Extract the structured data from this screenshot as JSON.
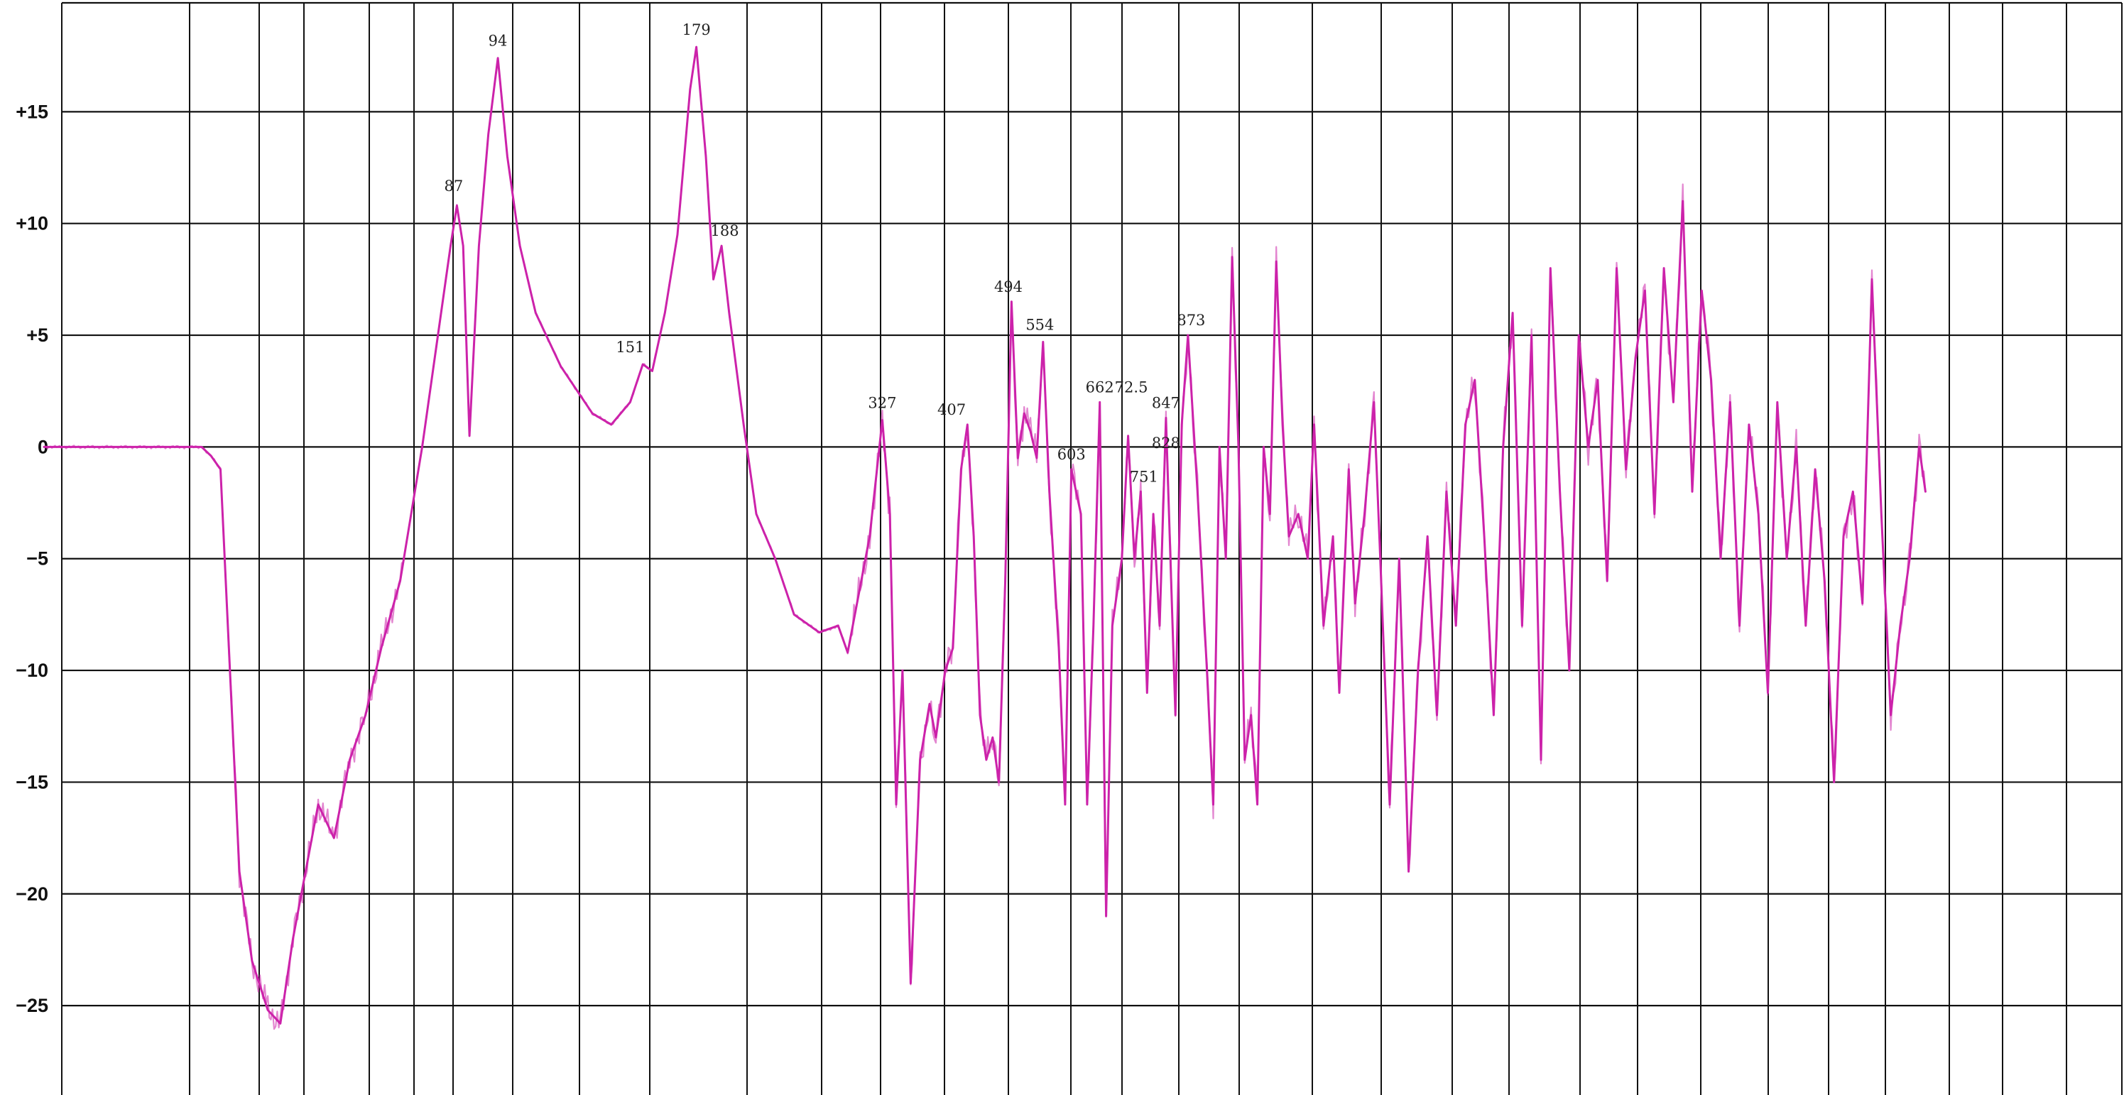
{
  "chart_data": {
    "type": "line",
    "grid": true,
    "xlim": [
      0,
      33
    ],
    "ylim": [
      -29,
      20
    ],
    "yticks": [
      15,
      10,
      5,
      0,
      -5,
      -10,
      -15,
      -20,
      -25
    ],
    "ytick_labels": [
      "+15",
      "+10",
      "+5",
      "0",
      "−5",
      "−10",
      "−15",
      "−20",
      "−25"
    ],
    "line_color": "#cc22aa",
    "trace_markers": [
      {
        "label": "87",
        "x": 6.5,
        "y": 11
      },
      {
        "label": "94",
        "x": 7.2,
        "y": 17.5
      },
      {
        "label": "151",
        "x": 9.3,
        "y": 3.8
      },
      {
        "label": "179",
        "x": 10.35,
        "y": 18
      },
      {
        "label": "188",
        "x": 10.8,
        "y": 9
      },
      {
        "label": "327",
        "x": 13.3,
        "y": 1.3
      },
      {
        "label": "407",
        "x": 14.4,
        "y": 1
      },
      {
        "label": "494",
        "x": 15.3,
        "y": 6.5
      },
      {
        "label": "554",
        "x": 15.8,
        "y": 4.8
      },
      {
        "label": "603",
        "x": 16.3,
        "y": -1
      },
      {
        "label": "662",
        "x": 16.75,
        "y": 2
      },
      {
        "label": "72.5",
        "x": 17.25,
        "y": 2
      },
      {
        "label": "751",
        "x": 17.45,
        "y": -2
      },
      {
        "label": "828",
        "x": 17.8,
        "y": -0.5
      },
      {
        "label": "847",
        "x": 17.8,
        "y": 1.3
      },
      {
        "label": "873",
        "x": 18.2,
        "y": 5
      }
    ],
    "series": [
      {
        "values": [
          [
            0.0,
            0
          ],
          [
            2.5,
            0
          ],
          [
            2.65,
            -0.4
          ],
          [
            2.8,
            -1.0
          ],
          [
            2.95,
            -10
          ],
          [
            3.1,
            -19
          ],
          [
            3.3,
            -23
          ],
          [
            3.55,
            -25.2
          ],
          [
            3.75,
            -25.8
          ],
          [
            3.95,
            -22
          ],
          [
            4.15,
            -19
          ],
          [
            4.35,
            -16
          ],
          [
            4.6,
            -17.5
          ],
          [
            4.85,
            -14
          ],
          [
            5.1,
            -12
          ],
          [
            5.35,
            -9
          ],
          [
            5.65,
            -6
          ],
          [
            6.0,
            0
          ],
          [
            6.25,
            5
          ],
          [
            6.45,
            9
          ],
          [
            6.55,
            10.8
          ],
          [
            6.65,
            9
          ],
          [
            6.75,
            0.5
          ],
          [
            6.9,
            9
          ],
          [
            7.05,
            14
          ],
          [
            7.2,
            17.4
          ],
          [
            7.35,
            13
          ],
          [
            7.55,
            9
          ],
          [
            7.8,
            6
          ],
          [
            8.2,
            3.6
          ],
          [
            8.7,
            1.5
          ],
          [
            9.0,
            1.0
          ],
          [
            9.3,
            2.0
          ],
          [
            9.5,
            3.7
          ],
          [
            9.65,
            3.4
          ],
          [
            9.85,
            6
          ],
          [
            10.05,
            9.5
          ],
          [
            10.25,
            16
          ],
          [
            10.35,
            17.9
          ],
          [
            10.5,
            13
          ],
          [
            10.62,
            7.5
          ],
          [
            10.75,
            9
          ],
          [
            10.87,
            6
          ],
          [
            11.1,
            1
          ],
          [
            11.3,
            -3
          ],
          [
            11.6,
            -5
          ],
          [
            11.9,
            -7.5
          ],
          [
            12.3,
            -8.3
          ],
          [
            12.6,
            -8
          ],
          [
            12.75,
            -9.2
          ],
          [
            13.1,
            -4
          ],
          [
            13.3,
            1.2
          ],
          [
            13.42,
            -3
          ],
          [
            13.52,
            -16
          ],
          [
            13.62,
            -10
          ],
          [
            13.75,
            -24
          ],
          [
            13.9,
            -14
          ],
          [
            14.05,
            -11.5
          ],
          [
            14.15,
            -13
          ],
          [
            14.3,
            -10
          ],
          [
            14.42,
            -9
          ],
          [
            14.55,
            -1
          ],
          [
            14.65,
            1
          ],
          [
            14.75,
            -4
          ],
          [
            14.85,
            -12
          ],
          [
            14.95,
            -14
          ],
          [
            15.05,
            -13
          ],
          [
            15.15,
            -15
          ],
          [
            15.25,
            -6
          ],
          [
            15.35,
            6.5
          ],
          [
            15.45,
            -0.5
          ],
          [
            15.55,
            1.5
          ],
          [
            15.65,
            0.7
          ],
          [
            15.75,
            -0.5
          ],
          [
            15.85,
            4.7
          ],
          [
            15.95,
            -2
          ],
          [
            16.1,
            -9
          ],
          [
            16.2,
            -16
          ],
          [
            16.3,
            -1
          ],
          [
            16.45,
            -3
          ],
          [
            16.55,
            -16
          ],
          [
            16.65,
            -8
          ],
          [
            16.75,
            2
          ],
          [
            16.85,
            -21
          ],
          [
            16.95,
            -8
          ],
          [
            17.1,
            -5
          ],
          [
            17.2,
            0.5
          ],
          [
            17.3,
            -5
          ],
          [
            17.4,
            -2
          ],
          [
            17.5,
            -11
          ],
          [
            17.6,
            -3
          ],
          [
            17.7,
            -8
          ],
          [
            17.8,
            1.3
          ],
          [
            17.95,
            -12
          ],
          [
            18.05,
            1
          ],
          [
            18.15,
            5
          ],
          [
            18.3,
            -2
          ],
          [
            18.45,
            -10
          ],
          [
            18.55,
            -16
          ],
          [
            18.65,
            0
          ],
          [
            18.75,
            -5
          ],
          [
            18.85,
            8.5
          ],
          [
            18.95,
            0
          ],
          [
            19.05,
            -14
          ],
          [
            19.15,
            -12
          ],
          [
            19.25,
            -16
          ],
          [
            19.35,
            0
          ],
          [
            19.45,
            -3
          ],
          [
            19.55,
            8.3
          ],
          [
            19.65,
            1
          ],
          [
            19.75,
            -4
          ],
          [
            19.9,
            -3
          ],
          [
            20.05,
            -5
          ],
          [
            20.15,
            1
          ],
          [
            20.3,
            -8
          ],
          [
            20.45,
            -4
          ],
          [
            20.55,
            -11
          ],
          [
            20.7,
            -1
          ],
          [
            20.8,
            -7
          ],
          [
            20.95,
            -3
          ],
          [
            21.1,
            2
          ],
          [
            21.2,
            -5
          ],
          [
            21.35,
            -16
          ],
          [
            21.5,
            -5
          ],
          [
            21.65,
            -19
          ],
          [
            21.8,
            -10
          ],
          [
            21.95,
            -4
          ],
          [
            22.1,
            -12
          ],
          [
            22.25,
            -2
          ],
          [
            22.4,
            -8
          ],
          [
            22.55,
            1
          ],
          [
            22.7,
            3
          ],
          [
            22.85,
            -4
          ],
          [
            23.0,
            -12
          ],
          [
            23.15,
            0
          ],
          [
            23.3,
            6
          ],
          [
            23.45,
            -8
          ],
          [
            23.6,
            5
          ],
          [
            23.75,
            -14
          ],
          [
            23.9,
            8
          ],
          [
            24.05,
            -2
          ],
          [
            24.2,
            -10
          ],
          [
            24.35,
            5
          ],
          [
            24.5,
            0
          ],
          [
            24.65,
            3
          ],
          [
            24.8,
            -6
          ],
          [
            24.95,
            8
          ],
          [
            25.1,
            -1
          ],
          [
            25.25,
            4
          ],
          [
            25.4,
            7
          ],
          [
            25.55,
            -3
          ],
          [
            25.7,
            8
          ],
          [
            25.85,
            2
          ],
          [
            26.0,
            11
          ],
          [
            26.15,
            -2
          ],
          [
            26.3,
            7
          ],
          [
            26.45,
            3
          ],
          [
            26.6,
            -5
          ],
          [
            26.75,
            2
          ],
          [
            26.9,
            -8
          ],
          [
            27.05,
            1
          ],
          [
            27.2,
            -3
          ],
          [
            27.35,
            -11
          ],
          [
            27.5,
            2
          ],
          [
            27.65,
            -5
          ],
          [
            27.8,
            0
          ],
          [
            27.95,
            -8
          ],
          [
            28.1,
            -1
          ],
          [
            28.25,
            -6
          ],
          [
            28.4,
            -15
          ],
          [
            28.55,
            -4
          ],
          [
            28.7,
            -2
          ],
          [
            28.85,
            -7
          ],
          [
            29.0,
            7.5
          ],
          [
            29.15,
            -3
          ],
          [
            29.3,
            -12
          ],
          [
            29.45,
            -8
          ],
          [
            29.6,
            -5
          ],
          [
            29.75,
            0
          ],
          [
            29.85,
            -2
          ]
        ]
      }
    ]
  }
}
